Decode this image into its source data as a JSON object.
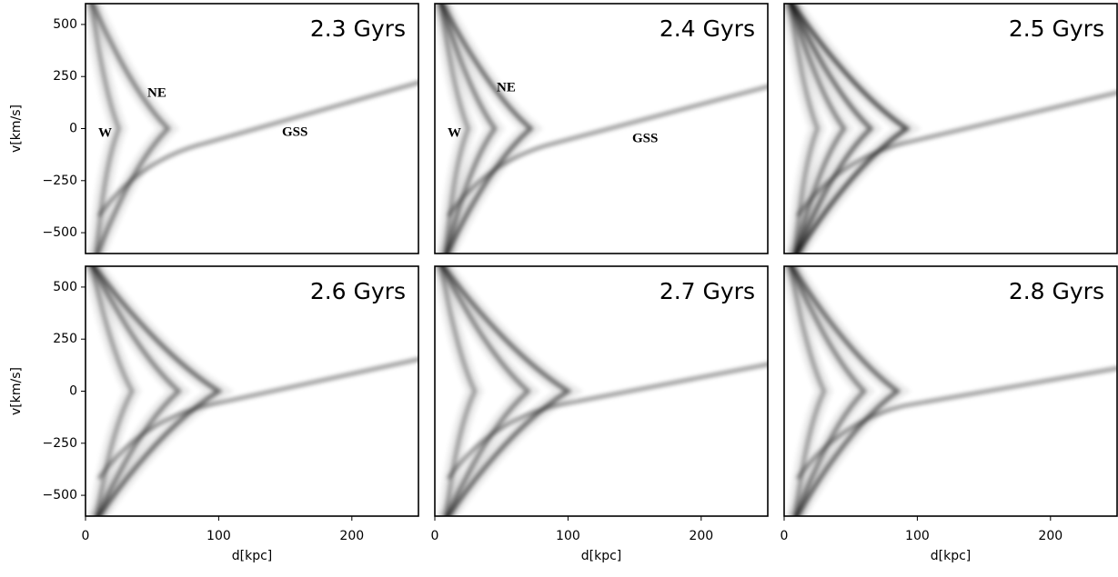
{
  "chart_data": [
    {
      "type": "density",
      "title": "2.3 Gyrs",
      "ylabel": "v[km/s]",
      "xlim": [
        0,
        250
      ],
      "ylim": [
        -600,
        600
      ],
      "yticks": [
        {
          "value": -500,
          "label": "−500"
        },
        {
          "value": -250,
          "label": "−250"
        },
        0,
        250,
        500
      ],
      "annotations": [
        "W",
        "NE",
        "GSS"
      ]
    },
    {
      "type": "density",
      "title": "2.4 Gyrs",
      "xlim": [
        0,
        250
      ],
      "ylim": [
        -600,
        600
      ],
      "annotations": [
        "W",
        "NE",
        "GSS"
      ]
    },
    {
      "type": "density",
      "title": "2.5 Gyrs",
      "xlim": [
        0,
        250
      ],
      "ylim": [
        -600,
        600
      ]
    },
    {
      "type": "density",
      "title": "2.6 Gyrs",
      "ylabel": "v[km/s]",
      "xlabel": "d[kpc]",
      "xlim": [
        0,
        250
      ],
      "ylim": [
        -600,
        600
      ],
      "xticks": [
        0,
        100,
        200
      ],
      "yticks": [
        {
          "value": -500,
          "label": "−500"
        },
        {
          "value": -250,
          "label": "−250"
        },
        0,
        250,
        500
      ]
    },
    {
      "type": "density",
      "title": "2.7 Gyrs",
      "xlabel": "d[kpc]",
      "xlim": [
        0,
        250
      ],
      "ylim": [
        -600,
        600
      ],
      "xticks": [
        0,
        100,
        200
      ]
    },
    {
      "type": "density",
      "title": "2.8 Gyrs",
      "xlabel": "d[kpc]",
      "xlim": [
        0,
        250
      ],
      "ylim": [
        -600,
        600
      ],
      "xticks": [
        0,
        100,
        200
      ]
    }
  ]
}
